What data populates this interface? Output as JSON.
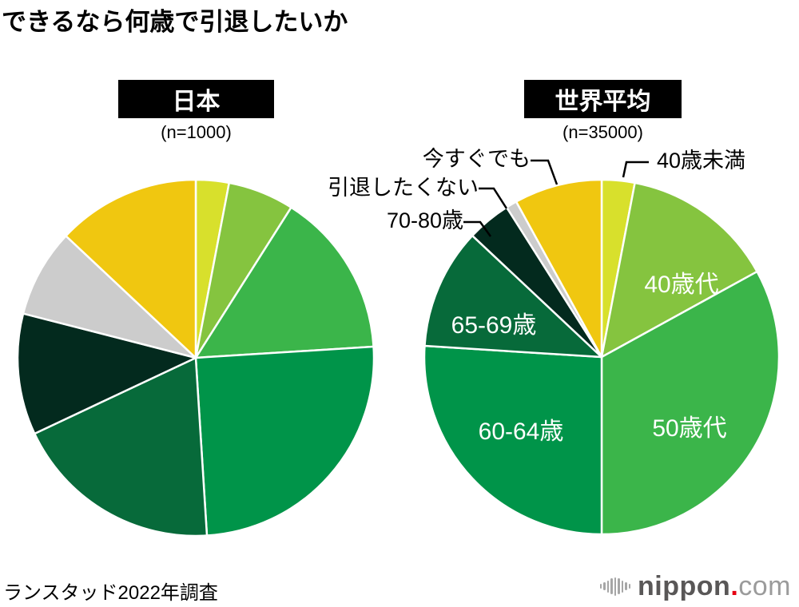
{
  "title": "できるなら何歳で引退したいか",
  "source": "ランスタッド2022年調査",
  "logo": {
    "brand": "nippon",
    "dot": ".",
    "tld": "com",
    "brand_color": "#595757",
    "dot_color": "#e60012",
    "tld_color": "#9b9b9b",
    "bars_color": "#a6a6a6"
  },
  "chart_data": [
    {
      "type": "pie",
      "title": "日本",
      "n_label": "(n=1000)",
      "n": 1000,
      "unit": "%",
      "direction": "clockwise",
      "start_angle_deg": 0,
      "categories": [
        "40歳未満",
        "40歳代",
        "50歳代",
        "60-64歳",
        "65-69歳",
        "70-80歳",
        "引退したくない",
        "今すぐでも"
      ],
      "values": [
        3,
        6,
        15,
        25,
        19,
        11,
        8,
        13
      ],
      "colors": [
        "#d8e02c",
        "#85c43f",
        "#3bb54a",
        "#009449",
        "#076a3a",
        "#032a1e",
        "#cccccc",
        "#f0c710"
      ]
    },
    {
      "type": "pie",
      "title": "世界平均",
      "n_label": "(n=35000)",
      "n": 35000,
      "unit": "%",
      "direction": "clockwise",
      "start_angle_deg": 0,
      "categories": [
        "40歳未満",
        "40歳代",
        "50歳代",
        "60-64歳",
        "65-69歳",
        "70-80歳",
        "引退したくない",
        "今すぐでも"
      ],
      "values": [
        3,
        14,
        33,
        26,
        11,
        4,
        1,
        8
      ],
      "colors": [
        "#d8e02c",
        "#85c43f",
        "#3bb54a",
        "#009449",
        "#076a3a",
        "#032a1e",
        "#cccccc",
        "#f0c710"
      ]
    }
  ]
}
